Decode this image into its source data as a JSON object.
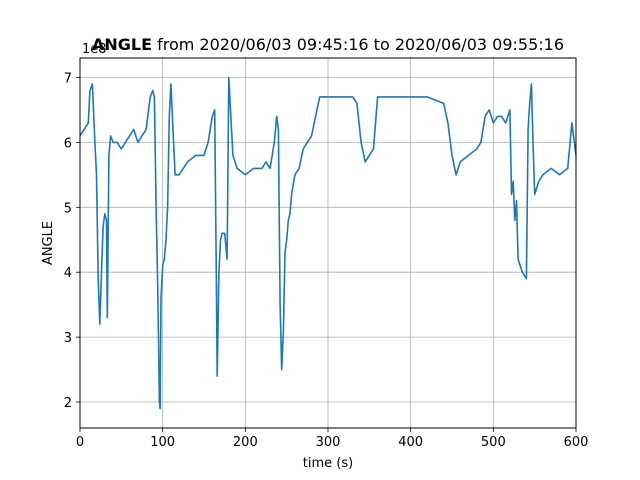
{
  "chart_data": {
    "type": "line",
    "title": {
      "bold": "ANGLE",
      "rest": "from 2020/06/03 09:45:16 to 2020/06/03 09:55:16"
    },
    "xlabel": "time (s)",
    "ylabel": "ANGLE",
    "offset_text": "1e8",
    "xlim": [
      0,
      600
    ],
    "ylim": [
      1.6,
      7.3
    ],
    "xticks": [
      0,
      100,
      200,
      300,
      400,
      500,
      600
    ],
    "yticks": [
      2,
      3,
      4,
      5,
      6,
      7
    ],
    "grid": true,
    "series": [
      {
        "color": "#1f77b4",
        "x": [
          0,
          5,
          10,
          12,
          15,
          18,
          20,
          22,
          24,
          26,
          28,
          30,
          32,
          33,
          35,
          37,
          40,
          45,
          50,
          55,
          60,
          65,
          70,
          75,
          80,
          85,
          88,
          90,
          92,
          94,
          95,
          96,
          97,
          98,
          100,
          102,
          104,
          106,
          108,
          110,
          115,
          120,
          130,
          140,
          150,
          155,
          160,
          163,
          165,
          166,
          168,
          170,
          172,
          175,
          178,
          180,
          182,
          185,
          190,
          200,
          210,
          220,
          225,
          230,
          235,
          238,
          240,
          242,
          244,
          246,
          248,
          250,
          252,
          254,
          256,
          260,
          265,
          270,
          275,
          280,
          290,
          300,
          310,
          320,
          330,
          335,
          340,
          345,
          350,
          355,
          360,
          380,
          400,
          420,
          440,
          445,
          450,
          455,
          460,
          470,
          480,
          485,
          490,
          495,
          500,
          505,
          510,
          515,
          520,
          522,
          524,
          526,
          528,
          530,
          535,
          540,
          542,
          544,
          546,
          548,
          550,
          555,
          560,
          570,
          580,
          590,
          595,
          600
        ],
        "values": [
          6.1,
          6.2,
          6.3,
          6.8,
          6.9,
          6.0,
          5.5,
          3.9,
          3.2,
          4.0,
          4.7,
          4.9,
          4.8,
          3.3,
          5.8,
          6.1,
          6.0,
          6.0,
          5.9,
          6.0,
          6.1,
          6.2,
          6.0,
          6.1,
          6.2,
          6.7,
          6.8,
          6.7,
          5.0,
          3.8,
          3.0,
          2.0,
          1.9,
          3.6,
          4.1,
          4.2,
          4.5,
          5.0,
          6.4,
          6.9,
          5.5,
          5.5,
          5.7,
          5.8,
          5.8,
          6.0,
          6.4,
          6.5,
          3.8,
          2.4,
          4.0,
          4.5,
          4.6,
          4.6,
          4.2,
          7.0,
          6.5,
          5.8,
          5.6,
          5.5,
          5.6,
          5.6,
          5.7,
          5.6,
          6.0,
          6.4,
          6.2,
          3.5,
          2.5,
          3.1,
          4.3,
          4.5,
          4.8,
          4.9,
          5.2,
          5.5,
          5.6,
          5.9,
          6.0,
          6.1,
          6.7,
          6.7,
          6.7,
          6.7,
          6.7,
          6.6,
          6.0,
          5.7,
          5.8,
          5.9,
          6.7,
          6.7,
          6.7,
          6.7,
          6.6,
          6.3,
          5.8,
          5.5,
          5.7,
          5.8,
          5.9,
          6.0,
          6.4,
          6.5,
          6.3,
          6.4,
          6.4,
          6.3,
          6.5,
          5.2,
          5.4,
          4.8,
          5.1,
          4.2,
          4.0,
          3.9,
          6.2,
          6.6,
          6.9,
          6.0,
          5.2,
          5.4,
          5.5,
          5.6,
          5.5,
          5.6,
          6.3,
          5.8
        ]
      }
    ]
  }
}
